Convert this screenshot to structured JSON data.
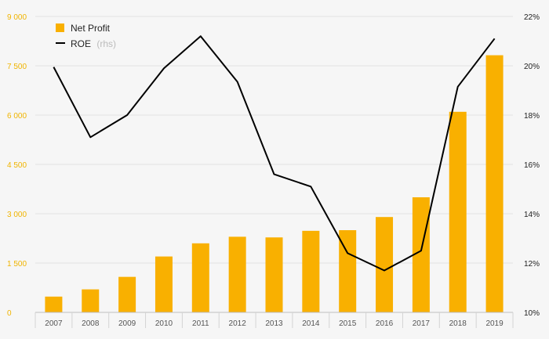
{
  "chart_data": {
    "type": "bar+line",
    "categories": [
      "2007",
      "2008",
      "2009",
      "2010",
      "2011",
      "2012",
      "2013",
      "2014",
      "2015",
      "2016",
      "2017",
      "2018",
      "2019"
    ],
    "series": [
      {
        "name": "Net Profit",
        "type": "bar",
        "axis": "left",
        "color": "#f9b000",
        "values": [
          480,
          700,
          1080,
          1700,
          2100,
          2300,
          2280,
          2480,
          2500,
          2900,
          3500,
          6100,
          7820
        ]
      },
      {
        "name": "ROE",
        "name_suffix": "(rhs)",
        "type": "line",
        "axis": "right",
        "color": "#000000",
        "values": [
          19.95,
          17.1,
          18.0,
          19.9,
          21.2,
          19.35,
          15.6,
          15.1,
          12.4,
          11.7,
          12.5,
          19.15,
          21.1
        ]
      }
    ],
    "y_left": {
      "ylim": [
        0,
        9000
      ],
      "ticks": [
        "0",
        "1 500",
        "3 000",
        "4 500",
        "6 000",
        "7 500",
        "9 000"
      ],
      "tick_values": [
        0,
        1500,
        3000,
        4500,
        6000,
        7500,
        9000
      ],
      "color": "#f0b400"
    },
    "y_right": {
      "ylim": [
        10,
        22
      ],
      "ticks": [
        "10%",
        "12%",
        "14%",
        "16%",
        "18%",
        "20%",
        "22%"
      ],
      "tick_values": [
        10,
        12,
        14,
        16,
        18,
        20,
        22
      ]
    },
    "grid": true,
    "legend": "top-left"
  }
}
